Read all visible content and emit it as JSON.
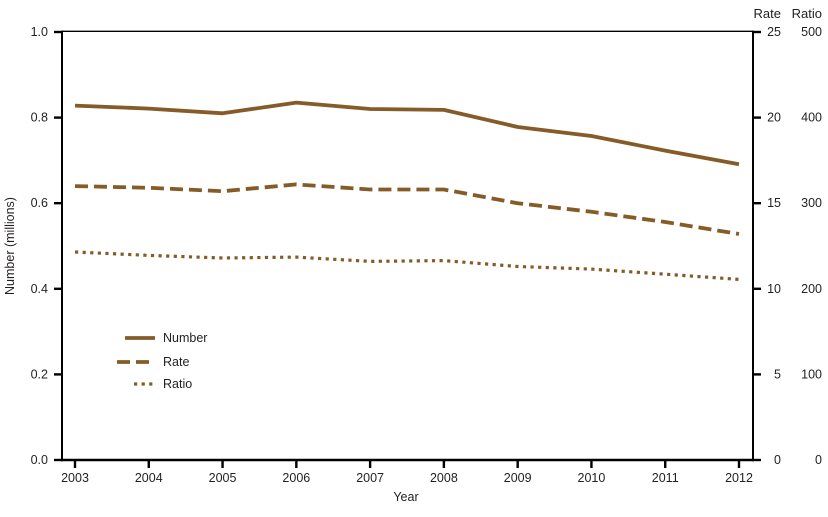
{
  "chart_data": {
    "type": "line",
    "title": "",
    "xlabel": "Year",
    "ylabel": "Number (millions)",
    "right_headers": [
      "Rate",
      "Ratio"
    ],
    "x": [
      2003,
      2004,
      2005,
      2006,
      2007,
      2008,
      2009,
      2010,
      2011,
      2012
    ],
    "x_tick_labels": [
      "2003",
      "2004",
      "2005",
      "2006",
      "2007",
      "2008",
      "2009",
      "2010",
      "2011",
      "2012"
    ],
    "axes": {
      "left": {
        "key": "number",
        "range": [
          0,
          1
        ],
        "ticks": [
          "0.0",
          "0.2",
          "0.4",
          "0.6",
          "0.8",
          "1.0"
        ]
      },
      "right_rate": {
        "key": "rate",
        "range": [
          0,
          25
        ],
        "ticks": [
          "0",
          "5",
          "10",
          "15",
          "20",
          "25"
        ]
      },
      "right_ratio": {
        "key": "ratio",
        "range": [
          0,
          500
        ],
        "ticks": [
          "0",
          "100",
          "200",
          "300",
          "400",
          "500"
        ]
      }
    },
    "series": [
      {
        "name": "Number",
        "style": "solid",
        "axis": "number",
        "values": [
          0.828,
          0.821,
          0.81,
          0.835,
          0.82,
          0.818,
          0.778,
          0.757,
          0.723,
          0.691
        ]
      },
      {
        "name": "Rate",
        "style": "dashed",
        "axis": "rate",
        "values": [
          16.0,
          15.9,
          15.7,
          16.1,
          15.8,
          15.8,
          15.0,
          14.5,
          13.9,
          13.2
        ]
      },
      {
        "name": "Ratio",
        "style": "dotted",
        "axis": "ratio",
        "values": [
          243,
          239,
          236,
          237,
          232,
          233,
          226,
          223,
          217,
          211
        ]
      }
    ],
    "legend": {
      "position": "inside lower-left",
      "entries": [
        "Number",
        "Rate",
        "Ratio"
      ]
    },
    "colors": {
      "line": "#855C28",
      "axis": "#000000",
      "text": "#231f20"
    },
    "grid": false
  }
}
